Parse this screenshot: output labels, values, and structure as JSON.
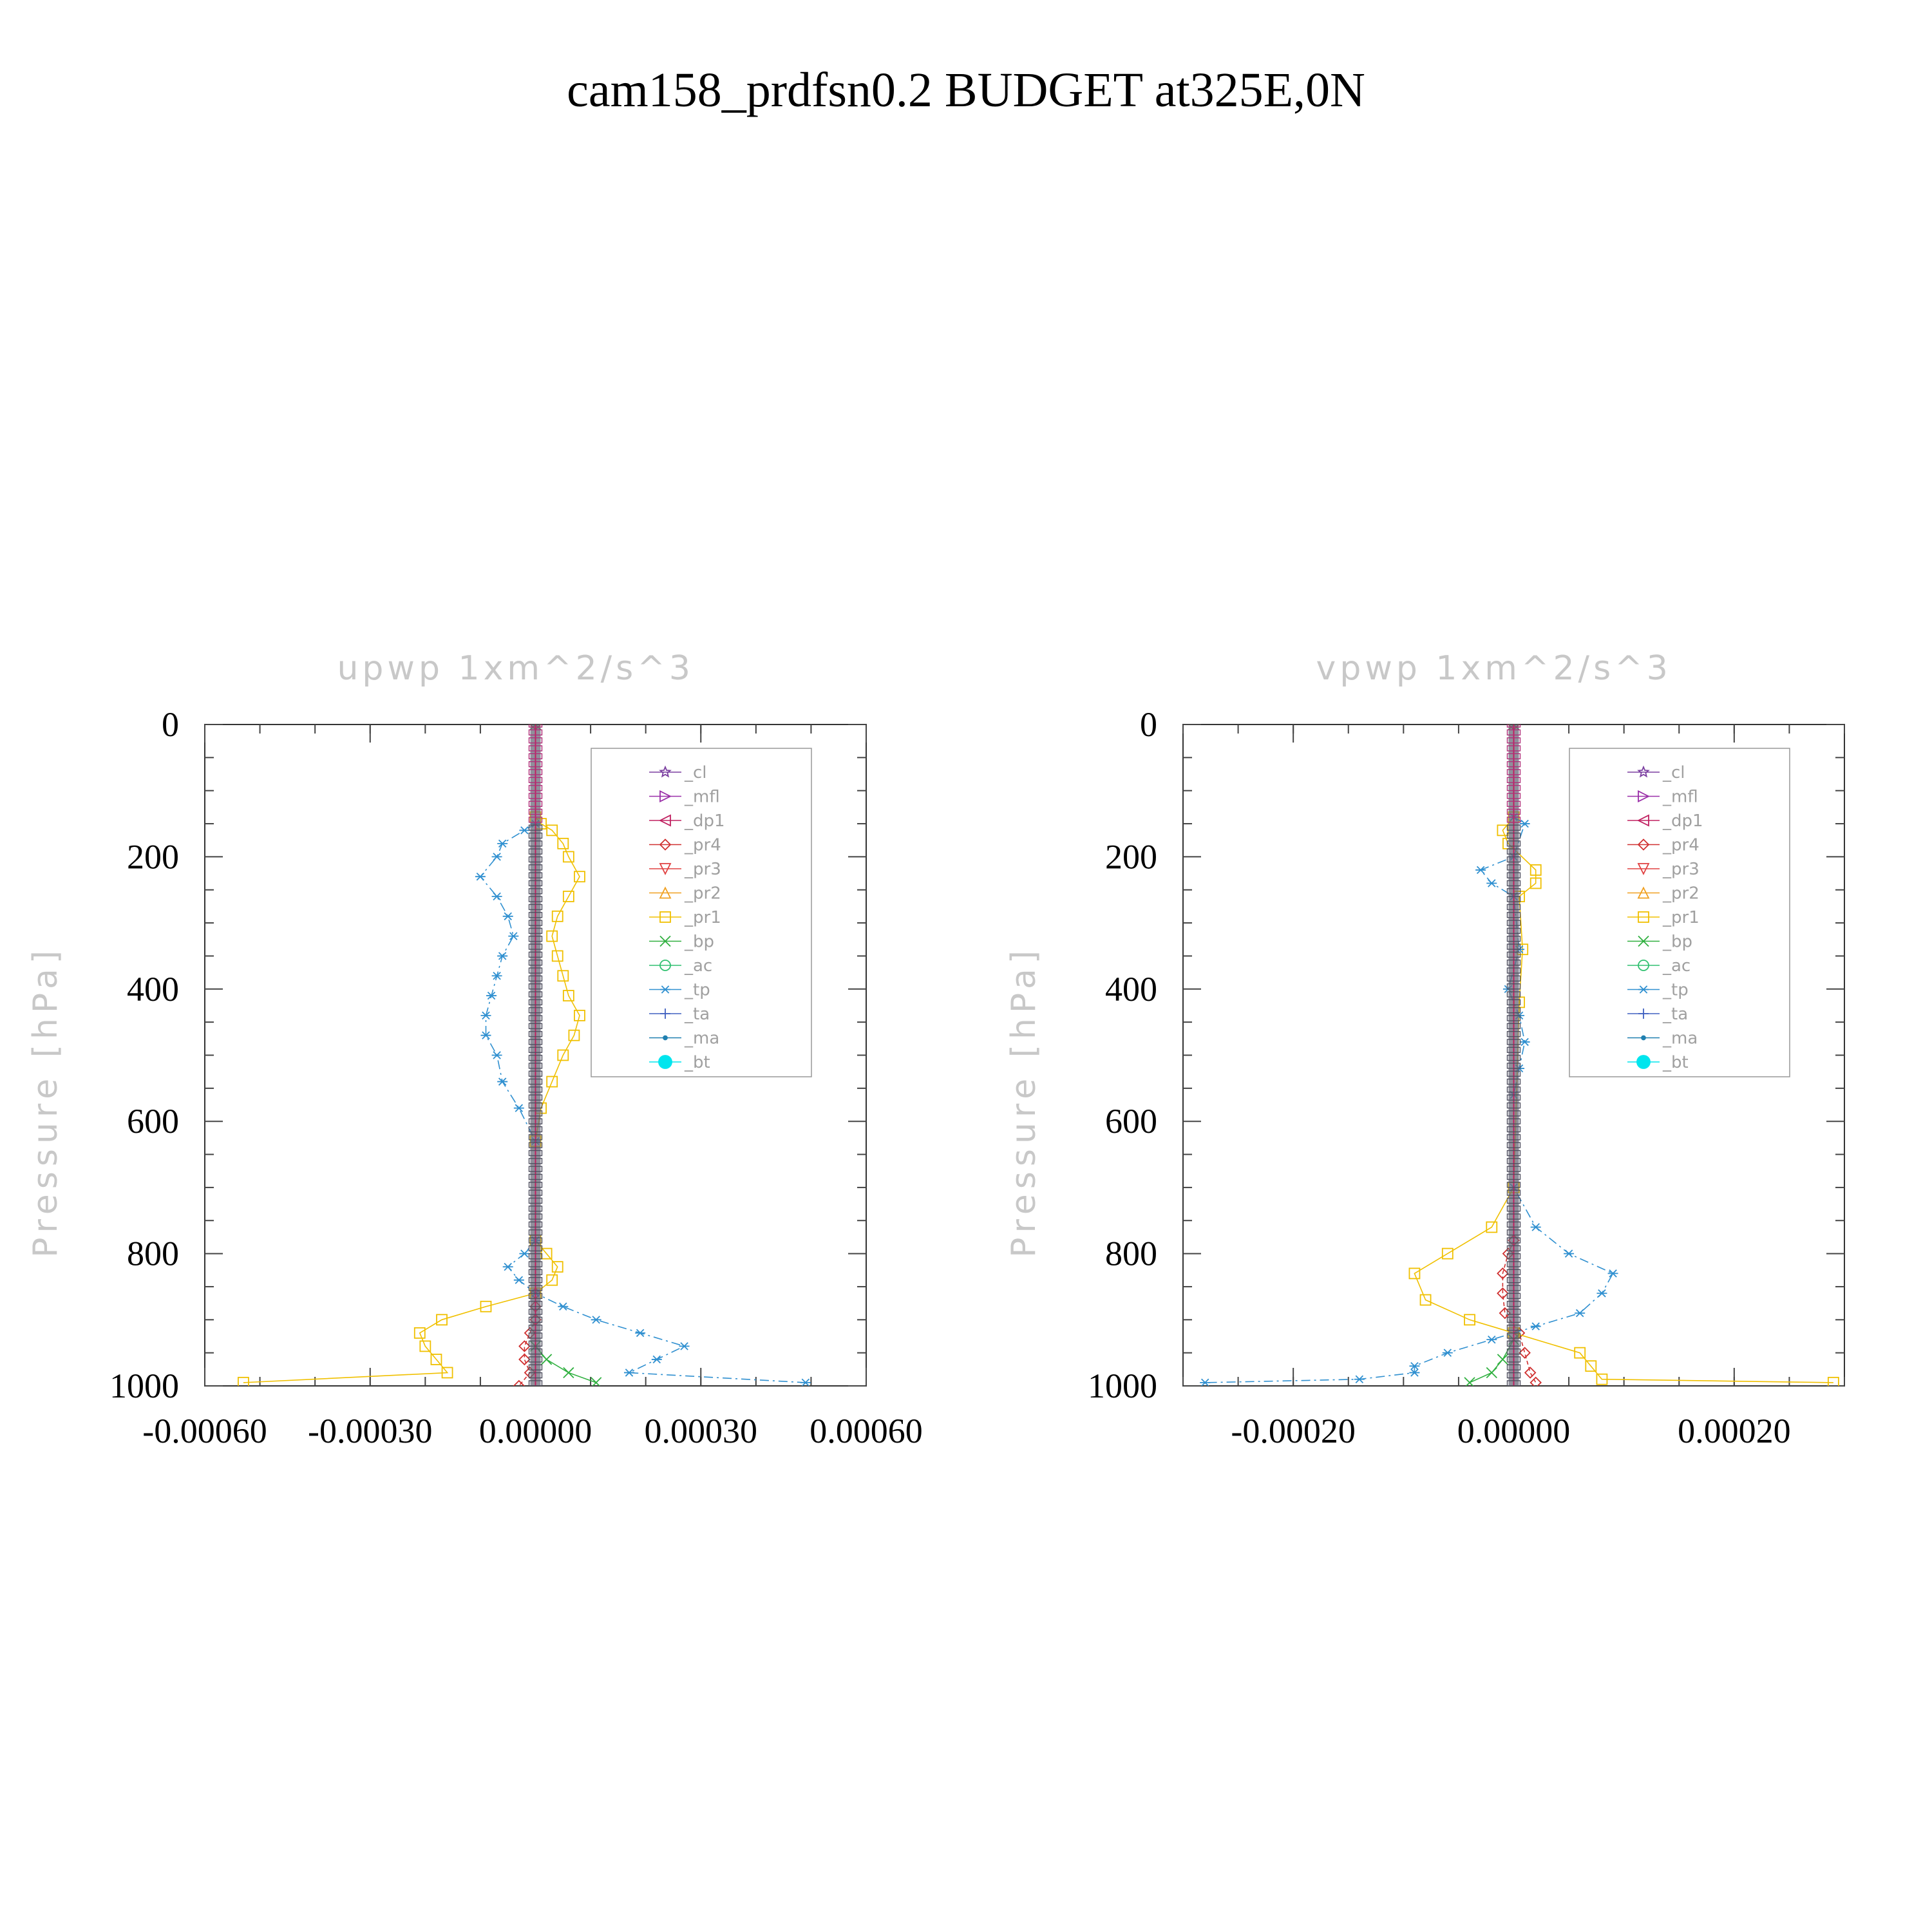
{
  "figure": {
    "title": "cam158_prdfsn0.2  BUDGET at325E,0N"
  },
  "chart_data": [
    {
      "type": "line",
      "title": "upwp   1xm^2/s^3",
      "ylabel": "Pressure [hPa]",
      "xlabel": "",
      "xlim": [
        -0.0006,
        0.0006
      ],
      "ylim": [
        1000,
        0
      ],
      "yticks": [
        "0",
        "200",
        "400",
        "600",
        "800",
        "1000"
      ],
      "xticks": [
        "-0.00060",
        "-0.00030",
        "0.00000",
        "0.00030",
        "0.00060"
      ],
      "xtick_values": [
        -0.0006,
        -0.0003,
        0,
        0.0003,
        0.0006
      ],
      "legend_position": "top-right",
      "series": [
        {
          "name": "_cl",
          "color": "#7b3fa0",
          "marker": "star",
          "x": [
            0,
            0
          ],
          "y": [
            0,
            1000
          ]
        },
        {
          "name": "_mfl",
          "color": "#9a2fa8",
          "marker": "tri-right",
          "x": [
            0,
            0
          ],
          "y": [
            0,
            1000
          ]
        },
        {
          "name": "_dp1",
          "color": "#c02060",
          "marker": "tri-left",
          "x": [
            0,
            0
          ],
          "y": [
            0,
            1000
          ]
        },
        {
          "name": "_pr4",
          "color": "#d03030",
          "marker": "diamond",
          "x": [
            0,
            0,
            0,
            0,
            -1e-05,
            -2e-05,
            -2e-05,
            -1e-05,
            -3e-05
          ],
          "y": [
            0,
            860,
            880,
            900,
            920,
            940,
            960,
            980,
            1000
          ]
        },
        {
          "name": "_pr3",
          "color": "#e04040",
          "marker": "tri-down",
          "x": [
            0,
            0
          ],
          "y": [
            0,
            1000
          ]
        },
        {
          "name": "_pr2",
          "color": "#f0a020",
          "marker": "tri-up",
          "x": [
            0,
            0
          ],
          "y": [
            0,
            1000
          ]
        },
        {
          "name": "_pr1",
          "color": "#f0c000",
          "marker": "square",
          "x": [
            0,
            1e-05,
            3e-05,
            5e-05,
            6e-05,
            8e-05,
            6e-05,
            4e-05,
            3e-05,
            4e-05,
            5e-05,
            6e-05,
            8e-05,
            7e-05,
            5e-05,
            3e-05,
            1e-05,
            0,
            0,
            2e-05,
            4e-05,
            3e-05,
            0,
            -9e-05,
            -0.00017,
            -0.00021,
            -0.0002,
            -0.00018,
            -0.00016,
            -0.00053
          ],
          "y": [
            140,
            150,
            160,
            180,
            200,
            230,
            260,
            290,
            320,
            350,
            380,
            410,
            440,
            470,
            500,
            540,
            580,
            630,
            780,
            800,
            820,
            840,
            860,
            880,
            900,
            920,
            940,
            960,
            980,
            995
          ]
        },
        {
          "name": "_bp",
          "color": "#30b040",
          "marker": "x",
          "x": [
            0,
            0,
            2e-05,
            6e-05,
            0.00011
          ],
          "y": [
            0,
            940,
            960,
            980,
            995
          ]
        },
        {
          "name": "_ac",
          "color": "#30c070",
          "marker": "circle",
          "x": [
            0,
            0
          ],
          "y": [
            0,
            1000
          ]
        },
        {
          "name": "_tp",
          "color": "#3090d0",
          "marker": "asterisk",
          "x": [
            0,
            -2e-05,
            -6e-05,
            -7e-05,
            -0.0001,
            -7e-05,
            -5e-05,
            -4e-05,
            -6e-05,
            -7e-05,
            -8e-05,
            -9e-05,
            -9e-05,
            -7e-05,
            -6e-05,
            -3e-05,
            0,
            0,
            -2e-05,
            -5e-05,
            -3e-05,
            0,
            5e-05,
            0.00011,
            0.00019,
            0.00027,
            0.00022,
            0.00017,
            0.00049
          ],
          "y": [
            150,
            160,
            180,
            200,
            230,
            260,
            290,
            320,
            350,
            380,
            410,
            440,
            470,
            500,
            540,
            580,
            630,
            780,
            800,
            820,
            840,
            860,
            880,
            900,
            920,
            940,
            960,
            980,
            995
          ]
        },
        {
          "name": "_ta",
          "color": "#4060c0",
          "marker": "plus",
          "x": [
            0,
            0
          ],
          "y": [
            0,
            1000
          ]
        },
        {
          "name": "_ma",
          "color": "#2080b0",
          "marker": "dot",
          "x": [
            0,
            0
          ],
          "y": [
            0,
            1000
          ]
        },
        {
          "name": "_bt",
          "color": "#00e5ee",
          "marker": "filled-circle",
          "x": [
            0,
            0
          ],
          "y": [
            0,
            1000
          ]
        }
      ]
    },
    {
      "type": "line",
      "title": "vpwp   1xm^2/s^3",
      "ylabel": "Pressure [hPa]",
      "xlabel": "",
      "xlim": [
        -0.0003,
        0.0003
      ],
      "ylim": [
        1000,
        0
      ],
      "yticks": [
        "0",
        "200",
        "400",
        "600",
        "800",
        "1000"
      ],
      "xticks": [
        "-0.00020",
        "0.00000",
        "0.00020"
      ],
      "xtick_values": [
        -0.0002,
        0,
        0.0002
      ],
      "legend_position": "top-right",
      "series": [
        {
          "name": "_cl",
          "color": "#7b3fa0",
          "marker": "star",
          "x": [
            0,
            0
          ],
          "y": [
            0,
            1000
          ]
        },
        {
          "name": "_mfl",
          "color": "#9a2fa8",
          "marker": "tri-right",
          "x": [
            0,
            0
          ],
          "y": [
            0,
            1000
          ]
        },
        {
          "name": "_dp1",
          "color": "#c02060",
          "marker": "tri-left",
          "x": [
            0,
            0
          ],
          "y": [
            0,
            1000
          ]
        },
        {
          "name": "_pr4",
          "color": "#d03030",
          "marker": "diamond",
          "x": [
            0,
            0,
            -5e-06,
            -1e-05,
            -1e-05,
            -8e-06,
            5e-06,
            1e-05,
            1.5e-05,
            2e-05
          ],
          "y": [
            0,
            780,
            800,
            830,
            860,
            890,
            920,
            950,
            980,
            995
          ]
        },
        {
          "name": "_pr3",
          "color": "#e04040",
          "marker": "tri-down",
          "x": [
            0,
            0
          ],
          "y": [
            0,
            1000
          ]
        },
        {
          "name": "_pr2",
          "color": "#f0a020",
          "marker": "tri-up",
          "x": [
            0,
            0
          ],
          "y": [
            0,
            1000
          ]
        },
        {
          "name": "_pr1",
          "color": "#f0c000",
          "marker": "square",
          "x": [
            0,
            -1e-05,
            -5e-06,
            2e-05,
            2e-05,
            5e-06,
            8e-06,
            5e-06,
            0,
            -2e-05,
            -6e-05,
            -9e-05,
            -8e-05,
            -4e-05,
            0,
            6e-05,
            7e-05,
            8e-05,
            0.00029
          ],
          "y": [
            140,
            160,
            180,
            220,
            240,
            260,
            340,
            420,
            700,
            760,
            800,
            830,
            870,
            900,
            920,
            950,
            970,
            990,
            995
          ]
        },
        {
          "name": "_bp",
          "color": "#30b040",
          "marker": "x",
          "x": [
            0,
            0,
            -1e-05,
            -2e-05,
            -4e-05
          ],
          "y": [
            0,
            930,
            960,
            980,
            995
          ]
        },
        {
          "name": "_ac",
          "color": "#30c070",
          "marker": "circle",
          "x": [
            0,
            0
          ],
          "y": [
            0,
            1000
          ]
        },
        {
          "name": "_tp",
          "color": "#3090d0",
          "marker": "asterisk",
          "x": [
            0,
            1e-05,
            0,
            -3e-05,
            -2e-05,
            0,
            5e-06,
            -5e-06,
            5e-06,
            1e-05,
            5e-06,
            0,
            0,
            2e-05,
            5e-05,
            9e-05,
            8e-05,
            6e-05,
            2e-05,
            -2e-05,
            -6e-05,
            -9e-05,
            -9e-05,
            -0.00014,
            -0.00028
          ],
          "y": [
            140,
            150,
            200,
            220,
            240,
            260,
            340,
            400,
            440,
            480,
            520,
            560,
            700,
            760,
            800,
            830,
            860,
            890,
            910,
            930,
            950,
            970,
            980,
            990,
            995
          ]
        },
        {
          "name": "_ta",
          "color": "#4060c0",
          "marker": "plus",
          "x": [
            0,
            0
          ],
          "y": [
            0,
            1000
          ]
        },
        {
          "name": "_ma",
          "color": "#2080b0",
          "marker": "dot",
          "x": [
            0,
            0
          ],
          "y": [
            0,
            1000
          ]
        },
        {
          "name": "_bt",
          "color": "#00e5ee",
          "marker": "filled-circle",
          "x": [
            0,
            0
          ],
          "y": [
            0,
            1000
          ]
        }
      ]
    }
  ]
}
